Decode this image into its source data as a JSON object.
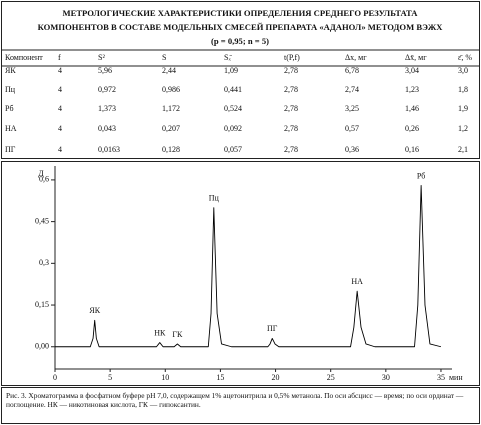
{
  "header": {
    "title_lines": [
      "МЕТРОЛОГИЧЕСКИЕ ХАРАКТЕРИСТИКИ ОПРЕДЕЛЕНИЯ СРЕДНЕГО РЕЗУЛЬТАТА",
      "КОМПОНЕНТОВ В СОСТАВЕ МОДЕЛЬНЫХ СМЕСЕЙ ПРЕПАРАТА «АДАНОЛ» МЕТОДОМ ВЭЖХ",
      "(p = 0,95; n = 5)"
    ]
  },
  "table": {
    "columns": [
      "Компонент",
      "f",
      "S²",
      "S",
      "Sₓ̄",
      "t(P,f)",
      "Δx, мг",
      "Δx̄, мг",
      "ε̄, %"
    ],
    "rows": [
      [
        "ЯК",
        "4",
        "5,96",
        "2,44",
        "1,09",
        "2,78",
        "6,78",
        "3,04",
        "3,0"
      ],
      [
        "Пц",
        "4",
        "0,972",
        "0,986",
        "0,441",
        "2,78",
        "2,74",
        "1,23",
        "1,8"
      ],
      [
        "Рб",
        "4",
        "1,373",
        "1,172",
        "0,524",
        "2,78",
        "3,25",
        "1,46",
        "1,9"
      ],
      [
        "НА",
        "4",
        "0,043",
        "0,207",
        "0,092",
        "2,78",
        "0,57",
        "0,26",
        "1,2"
      ],
      [
        "ПГ",
        "4",
        "0,0163",
        "0,128",
        "0,057",
        "2,78",
        "0,36",
        "0,16",
        "2,1"
      ]
    ]
  },
  "chart_data": {
    "type": "line",
    "y_label": "Д",
    "x_label": "мин",
    "color": "#000000",
    "x": [
      0,
      3.2,
      3.45,
      3.6,
      3.75,
      4.0,
      9.2,
      9.5,
      9.8,
      10.8,
      11.1,
      11.4,
      13.9,
      14.15,
      14.4,
      14.7,
      15.1,
      16,
      19.3,
      19.5,
      19.7,
      19.95,
      20.3,
      26.8,
      27.1,
      27.4,
      27.75,
      28.2,
      29,
      32.6,
      32.9,
      33.2,
      33.55,
      34,
      35
    ],
    "values": [
      0,
      0,
      0.03,
      0.095,
      0.03,
      0,
      0,
      0.015,
      0,
      0,
      0.01,
      0,
      0,
      0.12,
      0.5,
      0.12,
      0.01,
      0,
      0,
      0.01,
      0.03,
      0.01,
      0,
      0,
      0.07,
      0.2,
      0.07,
      0.01,
      0,
      0,
      0.15,
      0.58,
      0.15,
      0.01,
      0
    ],
    "annotations": [
      {
        "text": "ЯК",
        "x": 3.6,
        "y": 0.095
      },
      {
        "text": "НК",
        "x": 9.5,
        "y": 0.015
      },
      {
        "text": "ГК",
        "x": 11.1,
        "y": 0.01
      },
      {
        "text": "Пц",
        "x": 14.4,
        "y": 0.5
      },
      {
        "text": "ПГ",
        "x": 19.7,
        "y": 0.03
      },
      {
        "text": "НА",
        "x": 27.4,
        "y": 0.2
      },
      {
        "text": "Рб",
        "x": 33.2,
        "y": 0.58
      }
    ],
    "xlim": [
      0,
      36
    ],
    "ylim": [
      -0.08,
      0.65
    ],
    "xticks": [
      0,
      5,
      10,
      15,
      20,
      25,
      30,
      35
    ],
    "yticks": [
      {
        "value": 0,
        "label": "0,00"
      },
      {
        "value": 0.15,
        "label": "0,15"
      },
      {
        "value": 0.3,
        "label": "0,3"
      },
      {
        "value": 0.45,
        "label": "0,45"
      },
      {
        "value": 0.6,
        "label": "0,6"
      }
    ]
  },
  "caption": "Рис. 3. Хроматограмма в фосфатном буфере pH 7,0, содержащем 1% ацетонитрила и 0,5% метанола. По оси абсцисс — время; по оси ординат — поглощение. НК — никотиновая кислота, ГК — гипоксантин."
}
